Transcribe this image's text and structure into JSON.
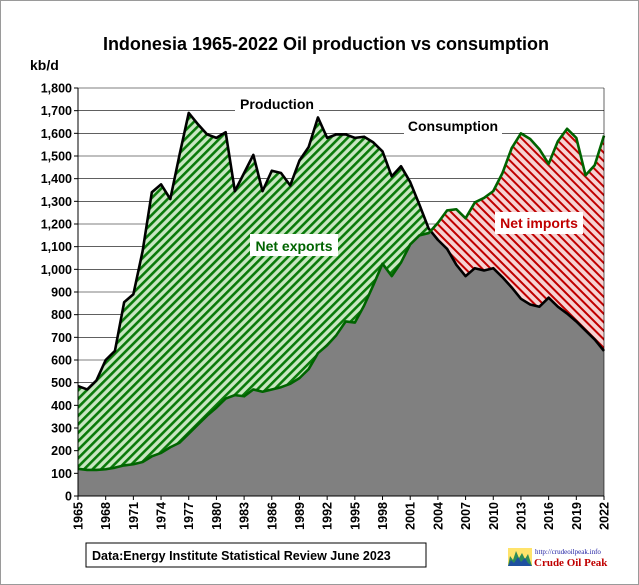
{
  "chart_data": {
    "type": "area",
    "title": "Indonesia  1965-2022 Oil production  vs consumption",
    "ylabel": "kb/d",
    "ylim": [
      0,
      1800
    ],
    "yticks": [
      0,
      100,
      200,
      300,
      400,
      500,
      600,
      700,
      800,
      900,
      1000,
      1100,
      1200,
      1300,
      1400,
      1500,
      1600,
      1700,
      1800
    ],
    "ytick_labels": [
      "0",
      "100",
      "200",
      "300",
      "400",
      "500",
      "600",
      "700",
      "800",
      "900",
      "1,000",
      "1,100",
      "1,200",
      "1,300",
      "1,400",
      "1,500",
      "1,600",
      "1,700",
      "1,800"
    ],
    "xticks": [
      1965,
      1968,
      1971,
      1974,
      1977,
      1980,
      1983,
      1986,
      1989,
      1992,
      1995,
      1998,
      2001,
      2004,
      2007,
      2010,
      2013,
      2016,
      2019,
      2022
    ],
    "grid": true,
    "x": [
      1965,
      1966,
      1967,
      1968,
      1969,
      1970,
      1971,
      1972,
      1973,
      1974,
      1975,
      1976,
      1977,
      1978,
      1979,
      1980,
      1981,
      1982,
      1983,
      1984,
      1985,
      1986,
      1987,
      1988,
      1989,
      1990,
      1991,
      1992,
      1993,
      1994,
      1995,
      1996,
      1997,
      1998,
      1999,
      2000,
      2001,
      2002,
      2003,
      2004,
      2005,
      2006,
      2007,
      2008,
      2009,
      2010,
      2011,
      2012,
      2013,
      2014,
      2015,
      2016,
      2017,
      2018,
      2019,
      2020,
      2021,
      2022
    ],
    "series": [
      {
        "name": "Production",
        "color": "#000000",
        "values": [
          485,
          470,
          510,
          600,
          640,
          855,
          890,
          1080,
          1340,
          1375,
          1310,
          1505,
          1690,
          1640,
          1595,
          1580,
          1605,
          1345,
          1425,
          1505,
          1345,
          1435,
          1425,
          1370,
          1480,
          1540,
          1670,
          1580,
          1595,
          1595,
          1580,
          1585,
          1560,
          1520,
          1410,
          1455,
          1385,
          1285,
          1180,
          1130,
          1090,
          1020,
          970,
          1005,
          995,
          1005,
          965,
          920,
          870,
          845,
          835,
          875,
          835,
          805,
          770,
          730,
          690,
          640
        ]
      },
      {
        "name": "Consumption",
        "color": "#006400",
        "values": [
          120,
          115,
          115,
          118,
          125,
          135,
          140,
          150,
          175,
          190,
          215,
          235,
          275,
          315,
          355,
          390,
          430,
          445,
          440,
          470,
          460,
          470,
          480,
          495,
          520,
          560,
          630,
          665,
          710,
          770,
          765,
          840,
          930,
          1025,
          970,
          1030,
          1110,
          1150,
          1160,
          1205,
          1260,
          1265,
          1225,
          1295,
          1315,
          1345,
          1425,
          1535,
          1600,
          1575,
          1530,
          1465,
          1565,
          1620,
          1580,
          1415,
          1460,
          1590
        ]
      }
    ],
    "annotations": [
      "Production",
      "Consumption",
      "Net exports",
      "Net imports"
    ],
    "colors": {
      "exports_fill": "#0a7a0a",
      "exports_bg": "#c9e7c2",
      "imports_fill": "#c00000",
      "imports_bg": "#f6d3d3",
      "consumption_area": "#808080",
      "plot_bg": "#ffffff"
    }
  },
  "source_note": "Data:Energy Institute Statistical Review June 2023",
  "logo": {
    "url": "http://crudeoilpeak.info",
    "name": "Crude Oil Peak"
  }
}
